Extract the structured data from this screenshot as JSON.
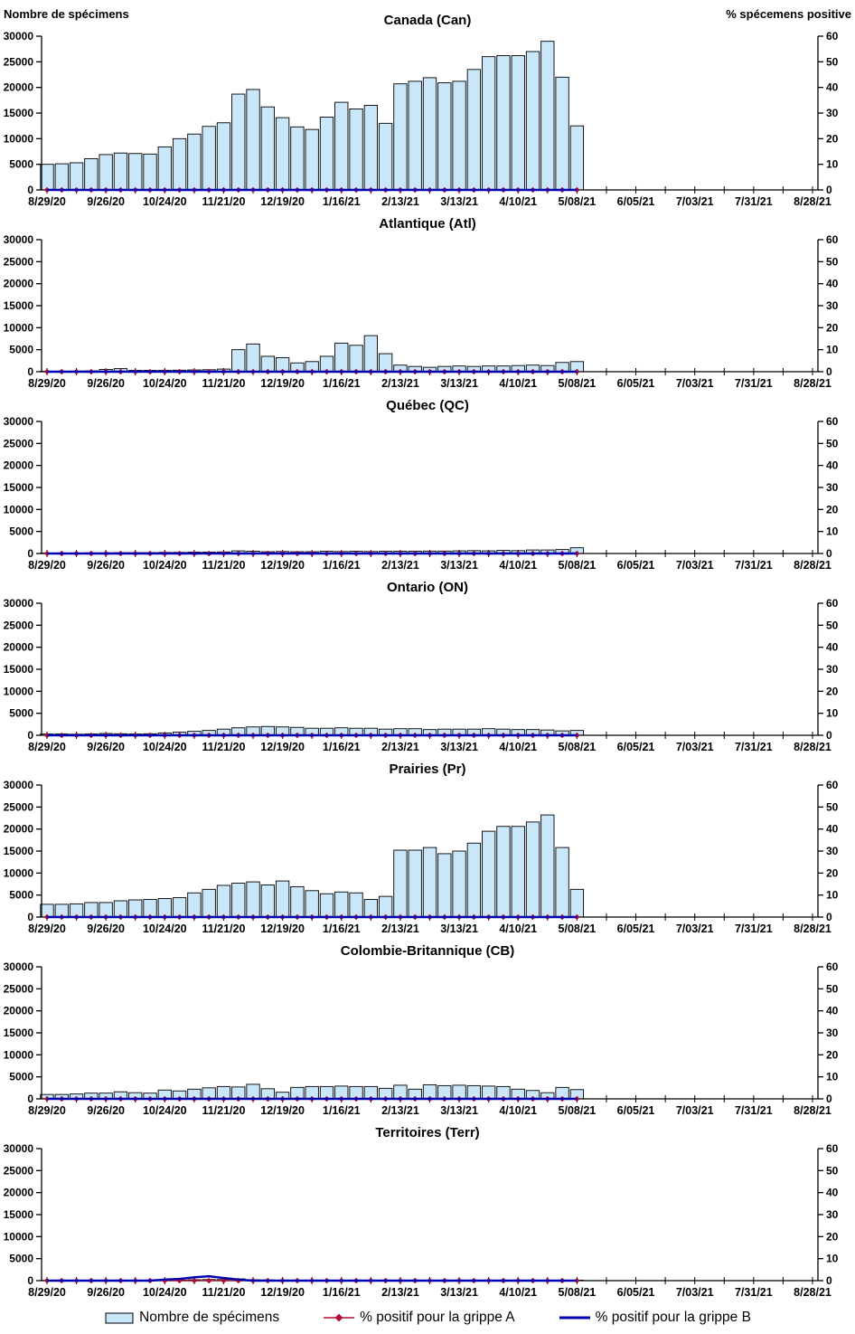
{
  "header": {
    "left_axis_title": "Nombre de spécimens",
    "right_axis_title": "% spécemens positive"
  },
  "axes": {
    "x_labels": [
      "8/29/20",
      "9/26/20",
      "10/24/20",
      "11/21/20",
      "12/19/20",
      "1/16/21",
      "2/13/21",
      "3/13/21",
      "4/10/21",
      "5/08/21",
      "6/05/21",
      "7/03/21",
      "7/31/21",
      "8/28/21"
    ],
    "left_ticks": [
      0,
      5000,
      10000,
      15000,
      20000,
      25000,
      30000
    ],
    "right_ticks": [
      0,
      10,
      20,
      30,
      40,
      50,
      60
    ],
    "weeks_span": 52,
    "minor_tick_step_weeks": 2
  },
  "categories": [
    "8/29/20",
    "9/05/20",
    "9/12/20",
    "9/19/20",
    "9/26/20",
    "10/03/20",
    "10/10/20",
    "10/17/20",
    "10/24/20",
    "10/31/20",
    "11/07/20",
    "11/14/20",
    "11/21/20",
    "11/28/20",
    "12/05/20",
    "12/12/20",
    "12/19/20",
    "12/26/20",
    "1/02/21",
    "1/09/21",
    "1/16/21",
    "1/23/21",
    "1/30/21",
    "2/06/21",
    "2/13/21",
    "2/20/21",
    "2/27/21",
    "3/06/21",
    "3/13/21",
    "3/20/21",
    "3/27/21",
    "4/03/21",
    "4/10/21",
    "4/17/21",
    "4/24/21",
    "5/01/21",
    "5/08/21"
  ],
  "chart_data": [
    {
      "type": "bar+line",
      "title": "Canada (Can)",
      "ylim_left": [
        0,
        30000
      ],
      "ylim_right": [
        0,
        60
      ],
      "series": [
        {
          "name": "Nombre de spécimens",
          "type": "bar",
          "axis": "left",
          "values": [
            5000,
            5100,
            5300,
            6100,
            6900,
            7200,
            7100,
            7000,
            8400,
            10000,
            10900,
            12400,
            13100,
            18700,
            19600,
            16200,
            14100,
            12300,
            11800,
            14200,
            17100,
            15800,
            16500,
            13000,
            20700,
            21200,
            21900,
            20900,
            21200,
            23500,
            26000,
            26200,
            26200,
            27000,
            29000,
            22000,
            12500
          ]
        },
        {
          "name": "% positif pour la grippe A",
          "type": "line",
          "axis": "right",
          "values": [
            0,
            0,
            0,
            0,
            0,
            0,
            0,
            0,
            0,
            0,
            0,
            0,
            0,
            0,
            0,
            0,
            0,
            0,
            0,
            0,
            0,
            0,
            0,
            0,
            0,
            0,
            0,
            0,
            0,
            0,
            0,
            0,
            0,
            0,
            0,
            0,
            0
          ]
        },
        {
          "name": "% positif pour la grippe B",
          "type": "line",
          "axis": "right",
          "values": [
            0,
            0,
            0,
            0,
            0,
            0,
            0,
            0,
            0,
            0,
            0,
            0,
            0,
            0,
            0,
            0,
            0,
            0,
            0,
            0,
            0,
            0,
            0,
            0,
            0,
            0,
            0,
            0,
            0,
            0,
            0,
            0,
            0,
            0,
            0,
            0,
            0
          ]
        }
      ]
    },
    {
      "type": "bar+line",
      "title": "Atlantique (Atl)",
      "ylim_left": [
        0,
        30000
      ],
      "ylim_right": [
        0,
        60
      ],
      "series": [
        {
          "name": "Nombre de spécimens",
          "type": "bar",
          "axis": "left",
          "values": [
            100,
            100,
            150,
            200,
            500,
            700,
            300,
            300,
            300,
            350,
            400,
            450,
            600,
            5000,
            6300,
            3500,
            3200,
            2000,
            2300,
            3500,
            6500,
            6000,
            8200,
            4100,
            1500,
            1200,
            1000,
            1200,
            1300,
            1200,
            1300,
            1300,
            1400,
            1500,
            1400,
            2100,
            2300
          ]
        },
        {
          "name": "% positif pour la grippe A",
          "type": "line",
          "axis": "right",
          "values": [
            0,
            0,
            0,
            0,
            0,
            0,
            0,
            0,
            0,
            0,
            0,
            0,
            0,
            0,
            0,
            0,
            0,
            0,
            0,
            0,
            0,
            0,
            0,
            0,
            0,
            0,
            0,
            0,
            0,
            0,
            0,
            0,
            0,
            0,
            0,
            0,
            0
          ]
        },
        {
          "name": "% positif pour la grippe B",
          "type": "line",
          "axis": "right",
          "values": [
            0,
            0,
            0,
            0,
            0,
            0,
            0,
            0,
            0,
            0,
            0,
            0,
            0,
            0,
            0,
            0,
            0,
            0,
            0,
            0,
            0,
            0,
            0,
            0,
            0,
            0,
            0,
            0,
            0,
            0,
            0,
            0,
            0,
            0,
            0,
            0,
            0
          ]
        }
      ]
    },
    {
      "type": "bar+line",
      "title": "Québec (QC)",
      "ylim_left": [
        0,
        30000
      ],
      "ylim_right": [
        0,
        60
      ],
      "series": [
        {
          "name": "Nombre de spécimens",
          "type": "bar",
          "axis": "left",
          "values": [
            100,
            100,
            100,
            150,
            150,
            200,
            200,
            200,
            250,
            250,
            300,
            300,
            350,
            600,
            500,
            400,
            450,
            400,
            400,
            500,
            450,
            500,
            450,
            500,
            500,
            500,
            550,
            550,
            600,
            650,
            600,
            700,
            650,
            800,
            800,
            900,
            1300
          ]
        },
        {
          "name": "% positif pour la grippe A",
          "type": "line",
          "axis": "right",
          "values": [
            0,
            0,
            0,
            0,
            0,
            0,
            0,
            0,
            0,
            0,
            0,
            0,
            0,
            0,
            0,
            0,
            0,
            0,
            0,
            0,
            0,
            0,
            0,
            0,
            0,
            0,
            0,
            0,
            0,
            0,
            0,
            0,
            0,
            0,
            0,
            0,
            0
          ]
        },
        {
          "name": "% positif pour la grippe B",
          "type": "line",
          "axis": "right",
          "values": [
            0,
            0,
            0,
            0,
            0,
            0,
            0,
            0,
            0,
            0,
            0,
            0,
            0,
            0,
            0,
            0,
            0,
            0,
            0,
            0,
            0,
            0,
            0,
            0,
            0,
            0,
            0,
            0,
            0,
            0,
            0,
            0,
            0,
            0,
            0,
            0,
            0
          ]
        }
      ]
    },
    {
      "type": "bar+line",
      "title": "Ontario (ON)",
      "ylim_left": [
        0,
        30000
      ],
      "ylim_right": [
        0,
        60
      ],
      "series": [
        {
          "name": "Nombre de spécimens",
          "type": "bar",
          "axis": "left",
          "values": [
            300,
            300,
            250,
            300,
            400,
            350,
            300,
            350,
            500,
            700,
            900,
            1100,
            1400,
            1700,
            1900,
            2000,
            1900,
            1800,
            1600,
            1600,
            1700,
            1600,
            1600,
            1400,
            1500,
            1500,
            1300,
            1400,
            1400,
            1400,
            1500,
            1400,
            1300,
            1300,
            1200,
            1000,
            1100
          ]
        },
        {
          "name": "% positif pour la grippe A",
          "type": "line",
          "axis": "right",
          "values": [
            0,
            0,
            0,
            0,
            0,
            0,
            0,
            0,
            0,
            0,
            0,
            0,
            0,
            0,
            0,
            0,
            0,
            0,
            0,
            0,
            0,
            0,
            0,
            0,
            0,
            0,
            0,
            0,
            0,
            0,
            0,
            0,
            0,
            0,
            0,
            0,
            0
          ]
        },
        {
          "name": "% positif pour la grippe B",
          "type": "line",
          "axis": "right",
          "values": [
            0,
            0,
            0,
            0,
            0,
            0,
            0,
            0,
            0,
            0,
            0,
            0,
            0,
            0,
            0,
            0,
            0,
            0,
            0,
            0,
            0,
            0,
            0,
            0,
            0,
            0,
            0,
            0,
            0,
            0,
            0,
            0,
            0,
            0,
            0,
            0,
            0
          ]
        }
      ]
    },
    {
      "type": "bar+line",
      "title": "Prairies (Pr)",
      "ylim_left": [
        0,
        30000
      ],
      "ylim_right": [
        0,
        60
      ],
      "series": [
        {
          "name": "Nombre de spécimens",
          "type": "bar",
          "axis": "left",
          "values": [
            2900,
            2900,
            3000,
            3300,
            3300,
            3700,
            3900,
            4000,
            4200,
            4400,
            5500,
            6300,
            7200,
            7700,
            8000,
            7300,
            8200,
            6900,
            6000,
            5300,
            5700,
            5500,
            4000,
            4700,
            15200,
            15200,
            15800,
            14400,
            15000,
            16800,
            19500,
            20600,
            20600,
            21600,
            23200,
            15800,
            6300
          ]
        },
        {
          "name": "% positif pour la grippe A",
          "type": "line",
          "axis": "right",
          "values": [
            0,
            0,
            0,
            0,
            0,
            0,
            0,
            0,
            0,
            0,
            0,
            0,
            0,
            0,
            0,
            0,
            0,
            0,
            0,
            0,
            0,
            0,
            0,
            0,
            0,
            0,
            0,
            0,
            0,
            0,
            0,
            0,
            0,
            0,
            0,
            0,
            0
          ]
        },
        {
          "name": "% positif pour la grippe B",
          "type": "line",
          "axis": "right",
          "values": [
            0,
            0,
            0,
            0,
            0,
            0,
            0,
            0,
            0,
            0,
            0,
            0,
            0,
            0,
            0,
            0,
            0,
            0,
            0,
            0,
            0,
            0,
            0,
            0,
            0,
            0,
            0,
            0,
            0,
            0,
            0,
            0,
            0,
            0,
            0,
            0,
            0
          ]
        }
      ]
    },
    {
      "type": "bar+line",
      "title": "Colombie-Britannique (CB)",
      "ylim_left": [
        0,
        30000
      ],
      "ylim_right": [
        0,
        60
      ],
      "series": [
        {
          "name": "Nombre de spécimens",
          "type": "bar",
          "axis": "left",
          "values": [
            1000,
            1000,
            1100,
            1300,
            1300,
            1600,
            1400,
            1300,
            2000,
            1800,
            2200,
            2500,
            2800,
            2700,
            3300,
            2300,
            1500,
            2600,
            2800,
            2800,
            2900,
            2800,
            2800,
            2400,
            3100,
            2200,
            3200,
            3000,
            3100,
            3000,
            2900,
            2800,
            2200,
            1900,
            1400,
            2600,
            2100
          ]
        },
        {
          "name": "% positif pour la grippe A",
          "type": "line",
          "axis": "right",
          "values": [
            0,
            0,
            0,
            0,
            0,
            0,
            0,
            0,
            0,
            0,
            0,
            0,
            0,
            0,
            0,
            0,
            0,
            0,
            0,
            0,
            0,
            0,
            0,
            0,
            0,
            0,
            0,
            0,
            0,
            0,
            0,
            0,
            0,
            0,
            0,
            0,
            0
          ]
        },
        {
          "name": "% positif pour la grippe B",
          "type": "line",
          "axis": "right",
          "values": [
            0,
            0,
            0,
            0,
            0,
            0,
            0,
            0,
            0,
            0,
            0,
            0,
            0,
            0,
            0,
            0,
            0,
            0,
            0,
            0,
            0,
            0,
            0,
            0,
            0,
            0,
            0,
            0,
            0,
            0,
            0,
            0,
            0,
            0,
            0,
            0,
            0
          ]
        }
      ]
    },
    {
      "type": "bar+line",
      "title": "Territoires (Terr)",
      "ylim_left": [
        0,
        30000
      ],
      "ylim_right": [
        0,
        60
      ],
      "series": [
        {
          "name": "Nombre de spécimens",
          "type": "bar",
          "axis": "left",
          "values": [
            50,
            50,
            60,
            80,
            80,
            100,
            100,
            100,
            150,
            150,
            200,
            250,
            250,
            400,
            200,
            150,
            100,
            100,
            100,
            100,
            120,
            120,
            120,
            100,
            100,
            100,
            100,
            100,
            120,
            120,
            120,
            120,
            120,
            100,
            100,
            100,
            100
          ]
        },
        {
          "name": "% positif pour la grippe A",
          "type": "line",
          "axis": "right",
          "values": [
            0,
            0,
            0,
            0,
            0,
            0,
            0,
            0,
            0,
            0,
            0,
            0,
            0,
            0,
            0,
            0,
            0,
            0,
            0,
            0,
            0,
            0,
            0,
            0,
            0,
            0,
            0,
            0,
            0,
            0,
            0,
            0,
            0,
            0,
            0,
            0,
            0
          ]
        },
        {
          "name": "% positif pour la grippe B",
          "type": "line",
          "axis": "right",
          "values": [
            0,
            0,
            0,
            0,
            0,
            0,
            0,
            0,
            0.5,
            0.8,
            1.5,
            2,
            1.2,
            0.5,
            0,
            0,
            0,
            0,
            0,
            0,
            0,
            0,
            0,
            0,
            0,
            0,
            0,
            0,
            0,
            0,
            0,
            0,
            0,
            0,
            0,
            0,
            0
          ]
        }
      ]
    }
  ],
  "legend": [
    {
      "label": "Nombre de spécimens",
      "swatch": "bar",
      "color": "#c9e7f8"
    },
    {
      "label": "% positif pour la grippe A",
      "swatch": "line-diamond",
      "color": "#b30c2e"
    },
    {
      "label": "% positif pour la grippe B",
      "swatch": "line",
      "color": "#0000b3"
    }
  ],
  "colors": {
    "bar_fill": "#c9e7f8",
    "bar_stroke": "#000000",
    "grippe_a": "#b30c2e",
    "grippe_b": "#0000b3",
    "axis": "#000000"
  }
}
